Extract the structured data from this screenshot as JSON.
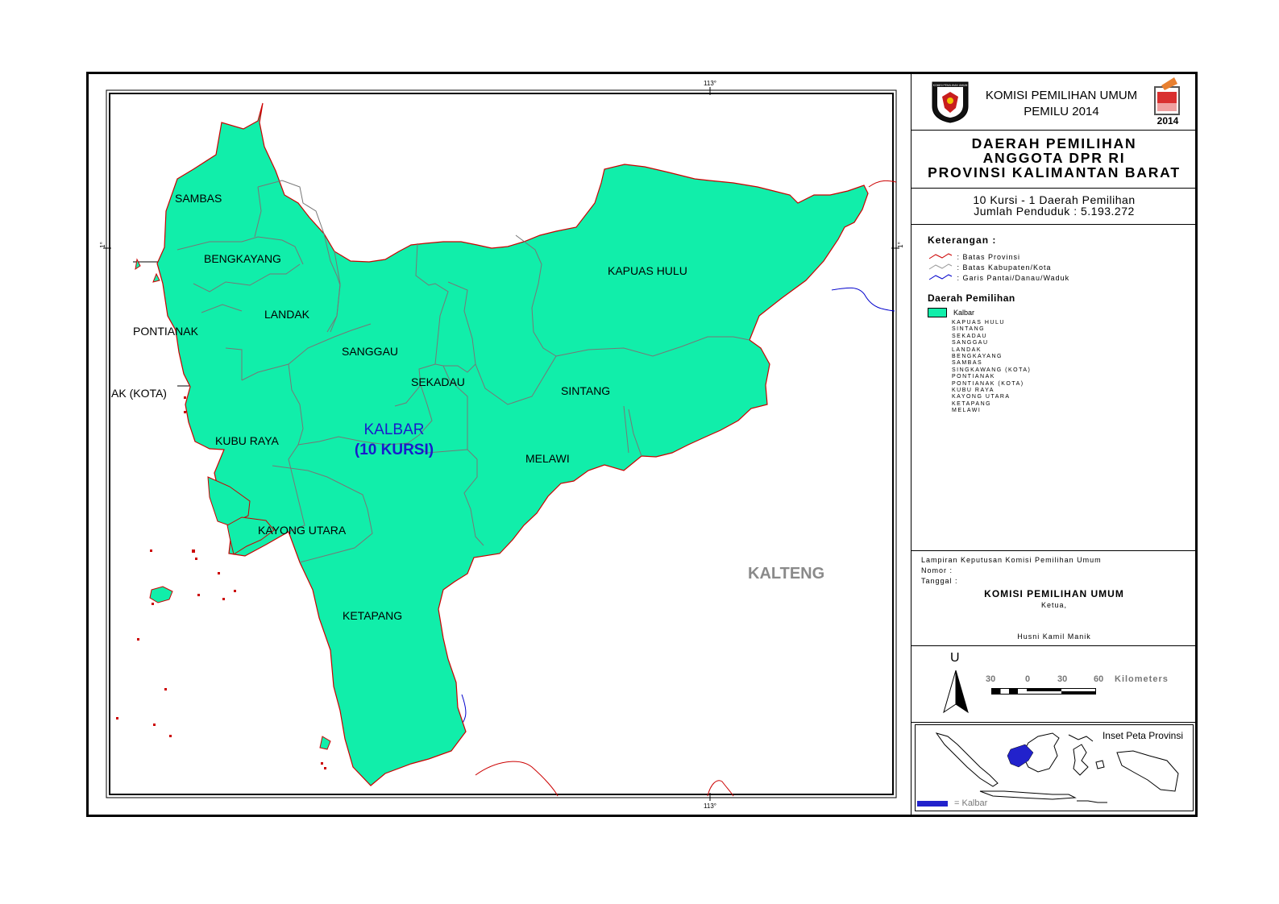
{
  "header": {
    "org_line1": "KOMISI PEMILIHAN UMUM",
    "org_line2": "PEMILU 2014",
    "logo_text": "KOMISI PEMILIHAN UMUM",
    "badge_year": "2014"
  },
  "title": {
    "line1": "DAERAH PEMILIHAN",
    "line2": "ANGGOTA DPR RI",
    "line3": "PROVINSI KALIMANTAN BARAT"
  },
  "summary": {
    "line1": "10 Kursi - 1 Daerah Pemilihan",
    "line2": "Jumlah Penduduk : 5.193.272"
  },
  "legend": {
    "heading": "Keterangan :",
    "items": [
      ": Batas Provinsi",
      ": Batas Kabupaten/Kota",
      ": Garis Pantai/Danau/Waduk"
    ],
    "item_colors": [
      "#cc0000",
      "#999999",
      "#0000cc"
    ],
    "dapil_heading": "Daerah Pemilihan",
    "dapil_label": "Kalbar",
    "dapil_color": "#11eeaa",
    "dapil_members": [
      "KAPUAS HULU",
      "SINTANG",
      "SEKADAU",
      "SANGGAU",
      "LANDAK",
      "BENGKAYANG",
      "SAMBAS",
      "SINGKAWANG (KOTA)",
      "PONTIANAK",
      "PONTIANAK (KOTA)",
      "KUBU RAYA",
      "KAYONG UTARA",
      "KETAPANG",
      "MELAWI"
    ]
  },
  "approval": {
    "lampiran": "Lampiran Keputusan Komisi Pemilihan Umum",
    "nomor": "Nomor   :",
    "tanggal": "Tanggal :",
    "org": "KOMISI PEMILIHAN UMUM",
    "role": "Ketua,",
    "name": "Husni Kamil Manik"
  },
  "scale": {
    "north": "U",
    "labels": [
      "30",
      "0",
      "30",
      "60"
    ],
    "unit": "Kilometers"
  },
  "inset": {
    "title": "Inset Peta Provinsi",
    "legend": "= Kalbar",
    "highlight_color": "#2222cc"
  },
  "map": {
    "fill_color": "#11eeaa",
    "tick_113_top": "113°",
    "tick_113_bottom": "113°",
    "tick_1_left": "1°",
    "tick_1_right": "1°",
    "regions": [
      "SAMBAS",
      "BENGKAYANG",
      "LANDAK",
      "PONTIANAK",
      "AK (KOTA)",
      "SANGGAU",
      "SEKADAU",
      "KAPUAS HULU",
      "SINTANG",
      "KUBU RAYA",
      "MELAWI",
      "KAYONG UTARA",
      "KETAPANG"
    ],
    "dapil_name": "KALBAR",
    "dapil_seats": "(10 KURSI)",
    "neighbor": "KALTENG"
  }
}
